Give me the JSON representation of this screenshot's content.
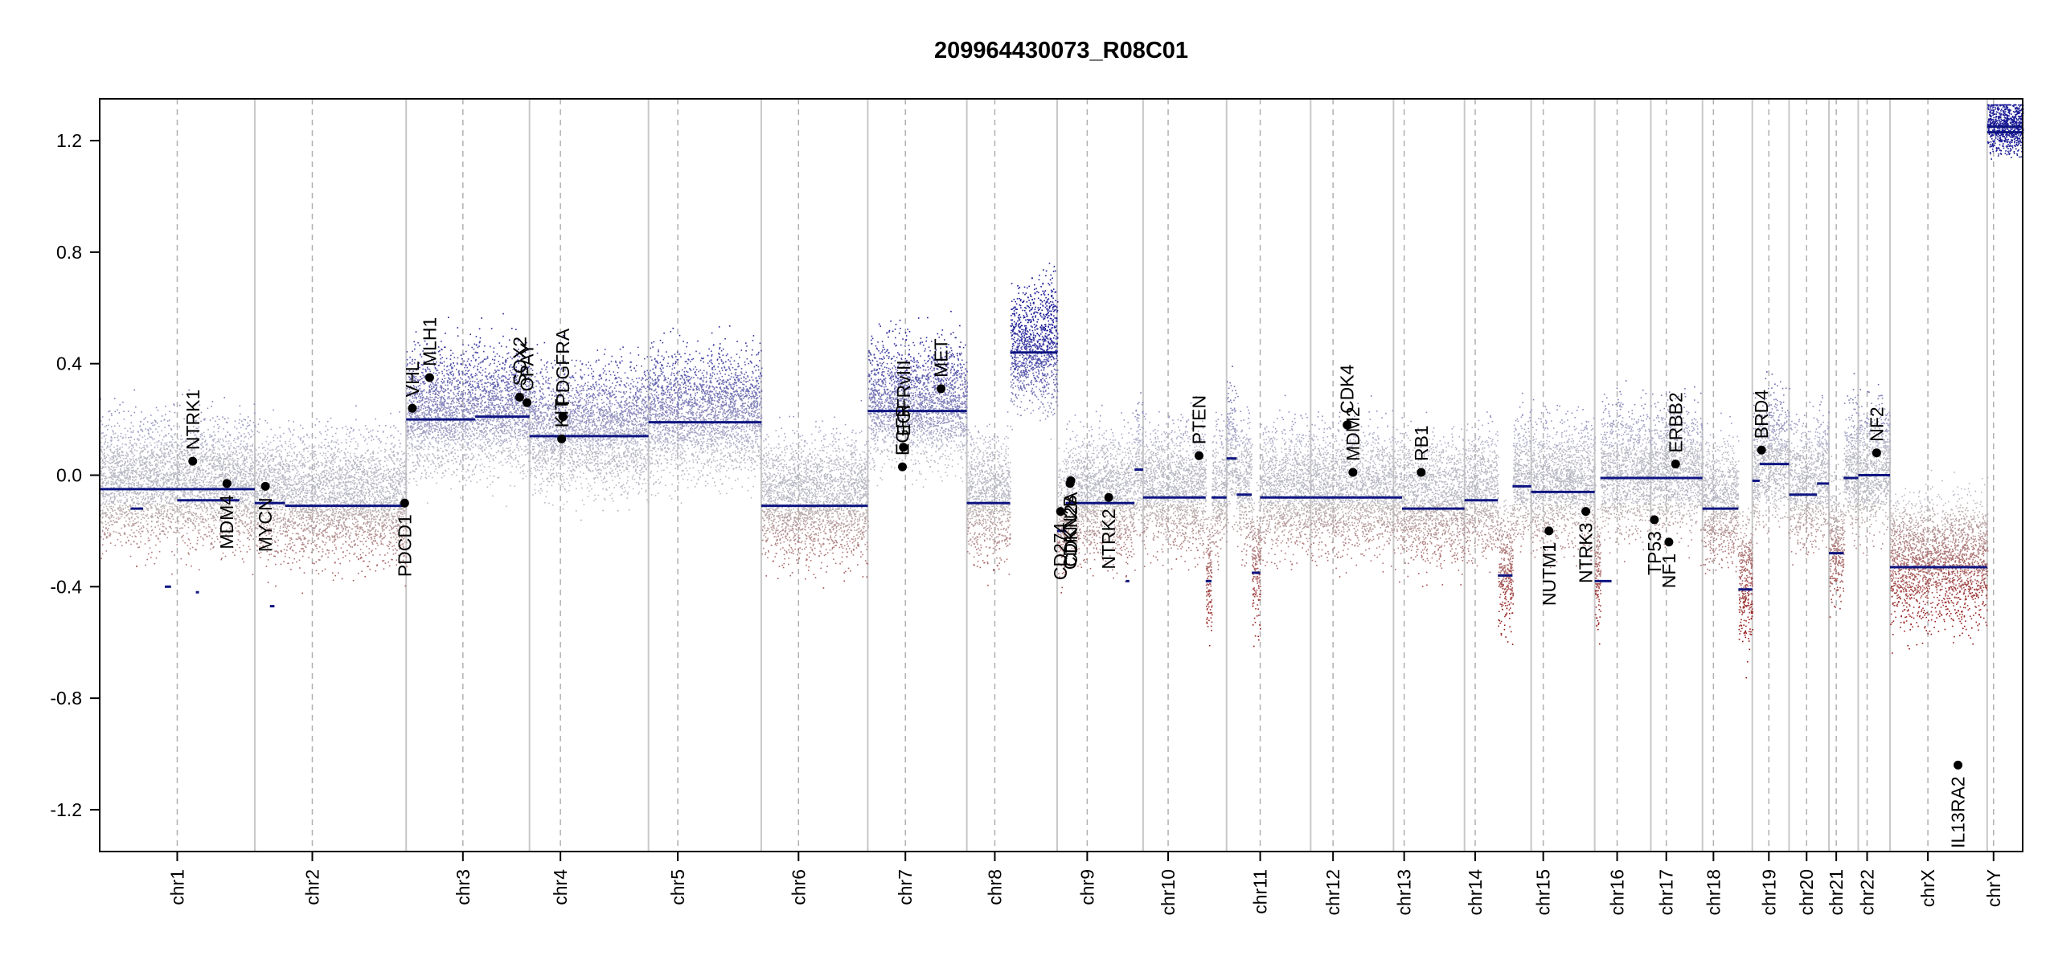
{
  "chart_data": {
    "type": "scatter",
    "title": "209964430073_R08C01",
    "xlabel": "",
    "ylabel": "",
    "ylim": [
      -1.35,
      1.35
    ],
    "yticks": [
      -1.2,
      -0.8,
      -0.4,
      0.0,
      0.4,
      0.8,
      1.2
    ],
    "ytick_labels": [
      "-1.2",
      "-0.8",
      "-0.4",
      "0.0",
      "0.4",
      "0.8",
      "1.2"
    ],
    "colors": {
      "gain": "#1a1a9a",
      "loss": "#9a1a1a",
      "neutral": "#b8b8c4",
      "segment": "#0d1480",
      "divider": "#c8c8c8",
      "centromere": "#b0b0b0"
    },
    "chromosomes": [
      {
        "name": "chr1",
        "size": 249,
        "cen": 0.5
      },
      {
        "name": "chr2",
        "size": 243,
        "cen": 0.38
      },
      {
        "name": "chr3",
        "size": 198,
        "cen": 0.46
      },
      {
        "name": "chr4",
        "size": 191,
        "cen": 0.26
      },
      {
        "name": "chr5",
        "size": 181,
        "cen": 0.26
      },
      {
        "name": "chr6",
        "size": 171,
        "cen": 0.35
      },
      {
        "name": "chr7",
        "size": 159,
        "cen": 0.38
      },
      {
        "name": "chr8",
        "size": 145,
        "cen": 0.31
      },
      {
        "name": "chr9",
        "size": 138,
        "cen": 0.35
      },
      {
        "name": "chr10",
        "size": 134,
        "cen": 0.3
      },
      {
        "name": "chr11",
        "size": 135,
        "cen": 0.4
      },
      {
        "name": "chr12",
        "size": 133,
        "cen": 0.27
      },
      {
        "name": "chr13",
        "size": 114,
        "cen": 0.15
      },
      {
        "name": "chr14",
        "size": 107,
        "cen": 0.16
      },
      {
        "name": "chr15",
        "size": 102,
        "cen": 0.19
      },
      {
        "name": "chr16",
        "size": 90,
        "cen": 0.4
      },
      {
        "name": "chr17",
        "size": 83,
        "cen": 0.3
      },
      {
        "name": "chr18",
        "size": 80,
        "cen": 0.22
      },
      {
        "name": "chr19",
        "size": 59,
        "cen": 0.45
      },
      {
        "name": "chr20",
        "size": 64,
        "cen": 0.44
      },
      {
        "name": "chr21",
        "size": 47,
        "cen": 0.25
      },
      {
        "name": "chr22",
        "size": 51,
        "cen": 0.28
      },
      {
        "name": "chrX",
        "size": 156,
        "cen": 0.39
      },
      {
        "name": "chrY",
        "size": 57,
        "cen": 0.18
      }
    ],
    "segments": [
      {
        "chr": "chr1",
        "from": 0.0,
        "to": 1.0,
        "value": -0.05
      },
      {
        "chr": "chr1",
        "from": 0.2,
        "to": 0.28,
        "value": -0.12
      },
      {
        "chr": "chr1",
        "from": 0.42,
        "to": 0.46,
        "value": -0.4
      },
      {
        "chr": "chr1",
        "from": 0.5,
        "to": 0.9,
        "value": -0.09
      },
      {
        "chr": "chr1",
        "from": 0.62,
        "to": 0.64,
        "value": -0.42
      },
      {
        "chr": "chr2",
        "from": 0.0,
        "to": 0.2,
        "value": -0.1
      },
      {
        "chr": "chr2",
        "from": 0.1,
        "to": 0.13,
        "value": -0.47
      },
      {
        "chr": "chr2",
        "from": 0.2,
        "to": 1.0,
        "value": -0.11
      },
      {
        "chr": "chr3",
        "from": 0.0,
        "to": 0.56,
        "value": 0.2
      },
      {
        "chr": "chr3",
        "from": 0.56,
        "to": 1.0,
        "value": 0.21
      },
      {
        "chr": "chr4",
        "from": 0.0,
        "to": 1.0,
        "value": 0.14
      },
      {
        "chr": "chr5",
        "from": 0.0,
        "to": 1.0,
        "value": 0.19
      },
      {
        "chr": "chr6",
        "from": 0.0,
        "to": 1.0,
        "value": -0.11
      },
      {
        "chr": "chr7",
        "from": 0.0,
        "to": 1.0,
        "value": 0.23
      },
      {
        "chr": "chr8",
        "from": 0.0,
        "to": 0.48,
        "value": -0.1
      },
      {
        "chr": "chr8",
        "from": 0.48,
        "to": 1.0,
        "value": 0.44
      },
      {
        "chr": "chr9",
        "from": 0.0,
        "to": 0.1,
        "value": -0.2
      },
      {
        "chr": "chr9",
        "from": 0.1,
        "to": 0.9,
        "value": -0.1
      },
      {
        "chr": "chr9",
        "from": 0.8,
        "to": 0.84,
        "value": -0.38
      },
      {
        "chr": "chr9",
        "from": 0.9,
        "to": 1.0,
        "value": 0.02
      },
      {
        "chr": "chr10",
        "from": 0.0,
        "to": 0.75,
        "value": -0.08
      },
      {
        "chr": "chr10",
        "from": 0.75,
        "to": 0.82,
        "value": -0.38
      },
      {
        "chr": "chr10",
        "from": 0.82,
        "to": 1.0,
        "value": -0.08
      },
      {
        "chr": "chr11",
        "from": 0.0,
        "to": 0.12,
        "value": 0.06
      },
      {
        "chr": "chr11",
        "from": 0.12,
        "to": 0.3,
        "value": -0.07
      },
      {
        "chr": "chr11",
        "from": 0.3,
        "to": 0.4,
        "value": -0.35
      },
      {
        "chr": "chr11",
        "from": 0.4,
        "to": 1.0,
        "value": -0.08
      },
      {
        "chr": "chr12",
        "from": 0.0,
        "to": 1.0,
        "value": -0.08
      },
      {
        "chr": "chr13",
        "from": 0.0,
        "to": 0.12,
        "value": -0.08
      },
      {
        "chr": "chr13",
        "from": 0.12,
        "to": 1.0,
        "value": -0.12
      },
      {
        "chr": "chr14",
        "from": 0.0,
        "to": 0.5,
        "value": -0.09
      },
      {
        "chr": "chr14",
        "from": 0.5,
        "to": 0.72,
        "value": -0.36
      },
      {
        "chr": "chr14",
        "from": 0.72,
        "to": 1.0,
        "value": -0.04
      },
      {
        "chr": "chr15",
        "from": 0.0,
        "to": 1.0,
        "value": -0.06
      },
      {
        "chr": "chr16",
        "from": 0.0,
        "to": 0.3,
        "value": -0.38
      },
      {
        "chr": "chr16",
        "from": 0.1,
        "to": 1.0,
        "value": -0.01
      },
      {
        "chr": "chr17",
        "from": 0.0,
        "to": 1.0,
        "value": -0.01
      },
      {
        "chr": "chr18",
        "from": 0.0,
        "to": 0.72,
        "value": -0.12
      },
      {
        "chr": "chr18",
        "from": 0.72,
        "to": 1.0,
        "value": -0.41
      },
      {
        "chr": "chr19",
        "from": 0.0,
        "to": 0.2,
        "value": -0.02
      },
      {
        "chr": "chr19",
        "from": 0.2,
        "to": 1.0,
        "value": 0.04
      },
      {
        "chr": "chr20",
        "from": 0.0,
        "to": 0.7,
        "value": -0.07
      },
      {
        "chr": "chr20",
        "from": 0.7,
        "to": 1.0,
        "value": -0.03
      },
      {
        "chr": "chr21",
        "from": 0.0,
        "to": 0.5,
        "value": -0.28
      },
      {
        "chr": "chr21",
        "from": 0.5,
        "to": 1.0,
        "value": -0.01
      },
      {
        "chr": "chr22",
        "from": 0.0,
        "to": 1.0,
        "value": 0.0
      },
      {
        "chr": "chrX",
        "from": 0.0,
        "to": 1.0,
        "value": -0.33
      },
      {
        "chr": "chrY",
        "from": 0.0,
        "to": 1.0,
        "value": 1.23
      },
      {
        "chr": "chrY",
        "from": 0.0,
        "to": 1.0,
        "value": 1.25
      }
    ],
    "genes": [
      {
        "name": "NTRK1",
        "chr": "chr1",
        "pos": 0.6,
        "value": 0.05
      },
      {
        "name": "MDM4",
        "chr": "chr1",
        "pos": 0.82,
        "value": -0.03
      },
      {
        "name": "MYCN",
        "chr": "chr2",
        "pos": 0.07,
        "value": -0.04
      },
      {
        "name": "PDCD1",
        "chr": "chr2",
        "pos": 0.99,
        "value": -0.1
      },
      {
        "name": "VHL",
        "chr": "chr3",
        "pos": 0.05,
        "value": 0.24
      },
      {
        "name": "MLH1",
        "chr": "chr3",
        "pos": 0.19,
        "value": 0.35
      },
      {
        "name": "SOX2",
        "chr": "chr3",
        "pos": 0.92,
        "value": 0.28
      },
      {
        "name": "OPAY",
        "chr": "chr3",
        "pos": 0.98,
        "value": 0.26
      },
      {
        "name": "KIT",
        "chr": "chr4",
        "pos": 0.27,
        "value": 0.13
      },
      {
        "name": "PDGFRA",
        "chr": "chr4",
        "pos": 0.28,
        "value": 0.21
      },
      {
        "name": "EGFR",
        "chr": "chr7",
        "pos": 0.35,
        "value": 0.03
      },
      {
        "name": "EGFRvIII",
        "chr": "chr7",
        "pos": 0.36,
        "value": 0.1
      },
      {
        "name": "MET",
        "chr": "chr7",
        "pos": 0.74,
        "value": 0.31
      },
      {
        "name": "CD274",
        "chr": "chr9",
        "pos": 0.04,
        "value": -0.13
      },
      {
        "name": "CDKN2B",
        "chr": "chr9",
        "pos": 0.15,
        "value": -0.03
      },
      {
        "name": "CDKN2A",
        "chr": "chr9",
        "pos": 0.16,
        "value": -0.02
      },
      {
        "name": "NTRK2",
        "chr": "chr9",
        "pos": 0.6,
        "value": -0.08
      },
      {
        "name": "PTEN",
        "chr": "chr10",
        "pos": 0.67,
        "value": 0.07
      },
      {
        "name": "CDK4",
        "chr": "chr12",
        "pos": 0.44,
        "value": 0.18
      },
      {
        "name": "MDM2",
        "chr": "chr12",
        "pos": 0.51,
        "value": 0.01
      },
      {
        "name": "RB1",
        "chr": "chr13",
        "pos": 0.39,
        "value": 0.01
      },
      {
        "name": "NUTM1",
        "chr": "chr15",
        "pos": 0.28,
        "value": -0.2
      },
      {
        "name": "NTRK3",
        "chr": "chr15",
        "pos": 0.86,
        "value": -0.13
      },
      {
        "name": "TP53",
        "chr": "chr17",
        "pos": 0.07,
        "value": -0.16
      },
      {
        "name": "NF1",
        "chr": "chr17",
        "pos": 0.35,
        "value": -0.24
      },
      {
        "name": "ERBB2",
        "chr": "chr17",
        "pos": 0.48,
        "value": 0.04
      },
      {
        "name": "BRD4",
        "chr": "chr19",
        "pos": 0.25,
        "value": 0.09
      },
      {
        "name": "NF2",
        "chr": "chr22",
        "pos": 0.58,
        "value": 0.08
      },
      {
        "name": "IL13RA2",
        "chr": "chrX",
        "pos": 0.7,
        "value": -1.04
      }
    ]
  }
}
